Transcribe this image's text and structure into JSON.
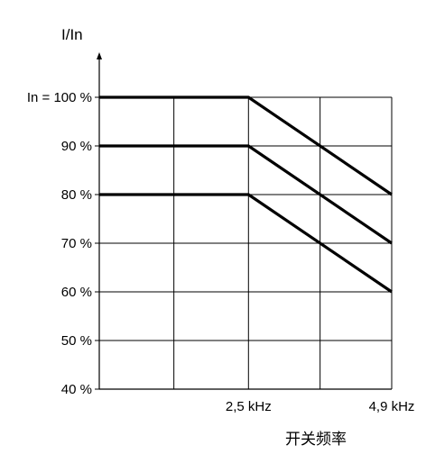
{
  "chart_data": {
    "type": "line",
    "ylabel": "I/In",
    "xlabel": "开关频率",
    "x": [
      0,
      2.5,
      4.9
    ],
    "xlim": [
      0,
      4.9
    ],
    "ylim": [
      40,
      100
    ],
    "xticks": [
      {
        "value": 2.5,
        "label": "2,5 kHz"
      },
      {
        "value": 4.9,
        "label": "4,9 kHz"
      }
    ],
    "yticks": [
      {
        "value": 100,
        "label": "In = 100 %"
      },
      {
        "value": 90,
        "label": "90 %"
      },
      {
        "value": 80,
        "label": "80 %"
      },
      {
        "value": 70,
        "label": "70 %"
      },
      {
        "value": 60,
        "label": "60 %"
      },
      {
        "value": 50,
        "label": "50 %"
      },
      {
        "value": 40,
        "label": "40 %"
      }
    ],
    "series": [
      {
        "values": [
          100,
          100,
          80
        ]
      },
      {
        "values": [
          90,
          90,
          70
        ]
      },
      {
        "values": [
          80,
          80,
          60
        ]
      }
    ],
    "grid": true,
    "grid_x": [
      1.25,
      2.5,
      3.7,
      4.9
    ]
  }
}
